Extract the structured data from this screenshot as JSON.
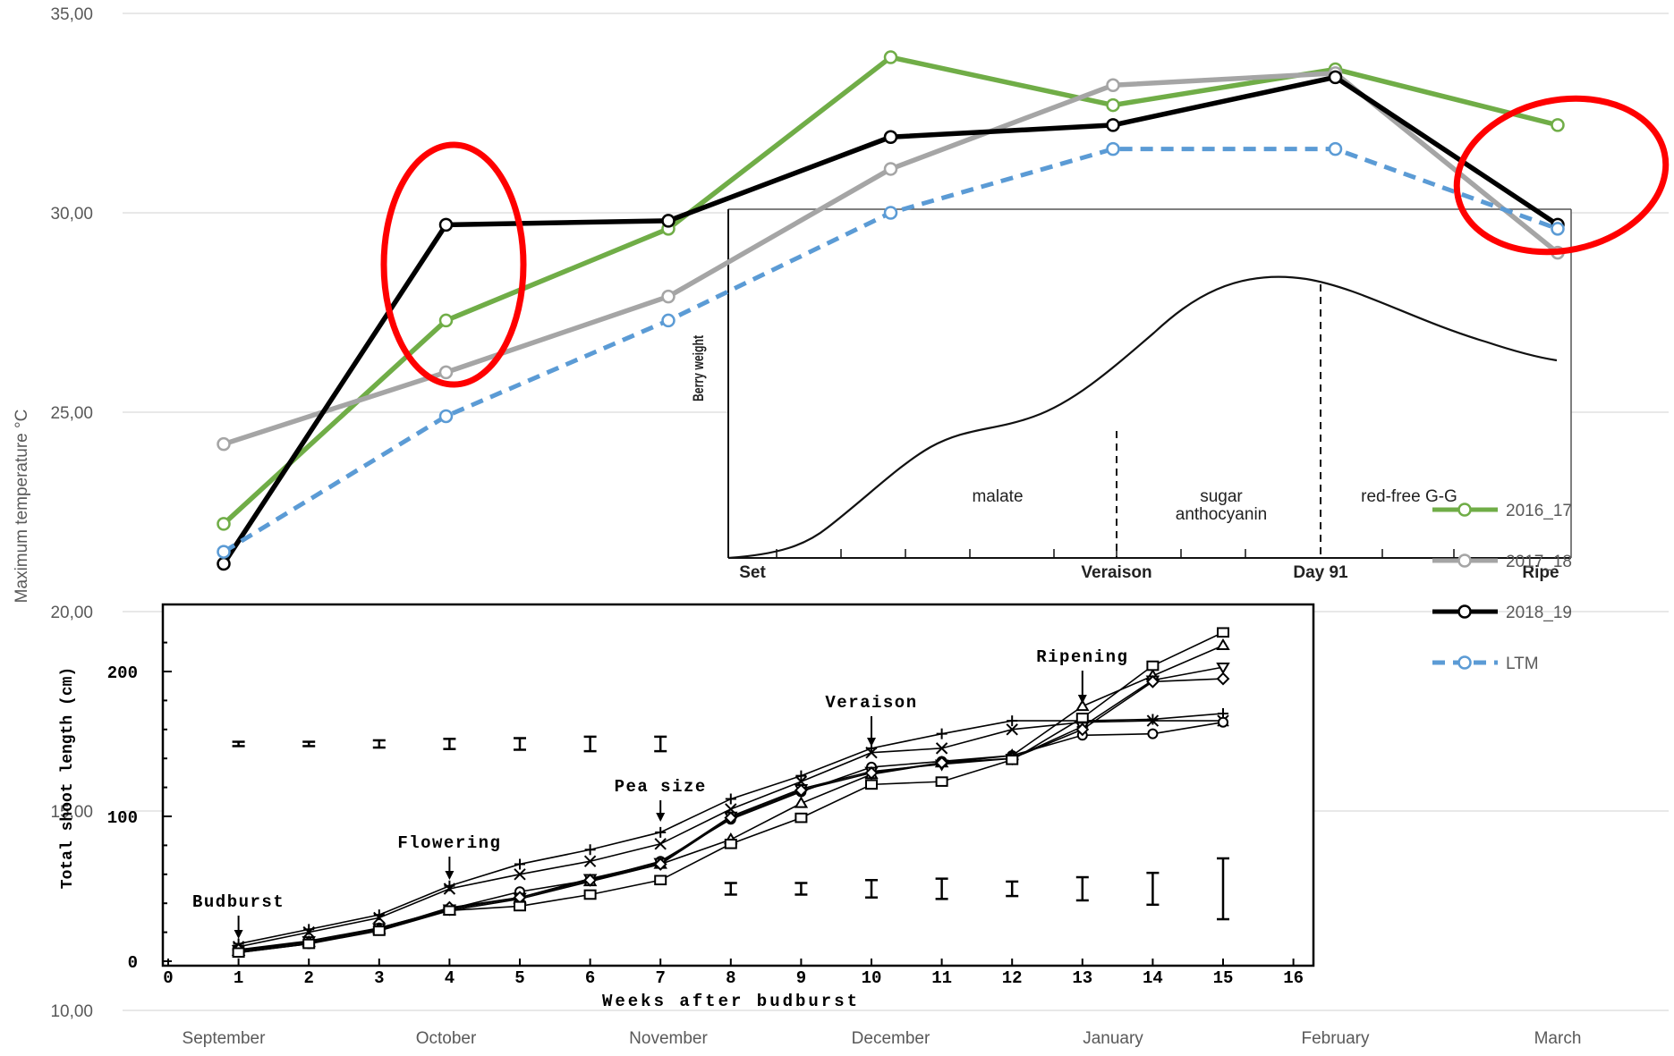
{
  "chart_data": [
    {
      "type": "line",
      "ylabel": "Maximum temperature °C",
      "ylim": [
        10,
        35
      ],
      "yticks": [
        "10,00",
        "15,00",
        "20,00",
        "25,00",
        "30,00",
        "35,00"
      ],
      "categories": [
        "September",
        "October",
        "November",
        "December",
        "January",
        "February",
        "March"
      ],
      "grid": true,
      "legend_position": "right",
      "series": [
        {
          "name": "2016_17",
          "color": "#70AD47",
          "values": [
            22.2,
            27.3,
            29.6,
            33.9,
            32.7,
            33.6,
            32.2
          ]
        },
        {
          "name": "2017_18",
          "color": "#A5A5A5",
          "values": [
            24.2,
            26.0,
            27.9,
            31.1,
            33.2,
            33.5,
            29.0
          ]
        },
        {
          "name": "2018_19",
          "color": "#000000",
          "values": [
            21.2,
            29.7,
            29.8,
            31.9,
            32.2,
            33.4,
            29.7
          ]
        },
        {
          "name": "LTM",
          "color": "#5B9BD5",
          "dashed": true,
          "values": [
            21.5,
            24.9,
            27.3,
            30.0,
            31.6,
            31.6,
            29.6
          ]
        }
      ]
    },
    {
      "type": "line",
      "title": "",
      "xlabel": "Weeks after budburst",
      "ylabel": "Total shoot length (cm)",
      "xticks": [
        "0",
        "1",
        "2",
        "3",
        "4",
        "5",
        "6",
        "7",
        "8",
        "9",
        "10",
        "11",
        "12",
        "13",
        "14",
        "15",
        "16"
      ],
      "yticks": [
        "0",
        "100",
        "200"
      ],
      "xlim": [
        0,
        16
      ],
      "ylim": [
        0,
        230
      ],
      "annotations": [
        "Budburst",
        "Flowering",
        "Pea size",
        "Veraison",
        "Ripening"
      ],
      "series": [
        {
          "marker": "+",
          "x": [
            1,
            2,
            3,
            4,
            5,
            6,
            7,
            8,
            9,
            10,
            11,
            12,
            13,
            14,
            15
          ],
          "values": [
            12,
            22,
            32,
            52,
            67,
            77,
            89,
            112,
            128,
            147,
            157,
            166,
            166,
            167,
            171
          ]
        },
        {
          "marker": "x",
          "x": [
            1,
            2,
            3,
            4,
            5,
            6,
            7,
            8,
            9,
            10,
            11,
            12,
            13,
            14,
            15
          ],
          "values": [
            10,
            20,
            30,
            50,
            60,
            69,
            81,
            105,
            124,
            144,
            147,
            160,
            165,
            166,
            166
          ]
        },
        {
          "marker": "o",
          "x": [
            1,
            2,
            3,
            4,
            5,
            6,
            7,
            8,
            9,
            10,
            11,
            12,
            13,
            14,
            15
          ],
          "values": [
            6,
            12,
            23,
            36,
            48,
            56,
            69,
            98,
            117,
            134,
            138,
            142,
            156,
            157,
            165
          ]
        },
        {
          "marker": "triangle-up",
          "x": [
            1,
            2,
            3,
            4,
            5,
            6,
            7,
            8,
            9,
            10,
            11,
            12,
            13,
            14,
            15
          ],
          "values": [
            7,
            13,
            22,
            35,
            43,
            55,
            67,
            84,
            109,
            129,
            137,
            142,
            176,
            197,
            218
          ]
        },
        {
          "marker": "triangle-down",
          "x": [
            1,
            2,
            3,
            4,
            5,
            6,
            7,
            8,
            9,
            10,
            11,
            12,
            13,
            14,
            15
          ],
          "values": [
            8,
            14,
            23,
            36,
            44,
            57,
            68,
            100,
            119,
            131,
            136,
            140,
            162,
            194,
            203
          ]
        },
        {
          "marker": "diamond",
          "x": [
            1,
            2,
            3,
            4,
            5,
            6,
            7,
            8,
            9,
            10,
            11,
            12,
            13,
            14,
            15
          ],
          "values": [
            8,
            13,
            22,
            37,
            44,
            56,
            67,
            99,
            118,
            130,
            137,
            140,
            160,
            193,
            195
          ]
        },
        {
          "marker": "square",
          "x": [
            1,
            2,
            3,
            4,
            5,
            6,
            7,
            8,
            9,
            10,
            11,
            12,
            13,
            14,
            15
          ],
          "values": [
            6,
            12,
            21,
            35,
            38,
            46,
            56,
            81,
            99,
            122,
            124,
            139,
            168,
            204,
            227
          ]
        }
      ],
      "error_bars_upper": {
        "x": [
          1,
          2,
          3,
          4,
          5,
          6,
          7
        ],
        "y": 150,
        "half": [
          1.5,
          1.5,
          2.5,
          3.5,
          4,
          5,
          5
        ]
      },
      "error_bars_lower": {
        "x": [
          8,
          9,
          10,
          11,
          12,
          13,
          14,
          15
        ],
        "y": 50,
        "half": [
          4,
          4,
          6,
          7,
          5,
          8,
          11,
          21
        ]
      }
    },
    {
      "type": "line",
      "ylabel": "Berry weight",
      "stage_labels": [
        "malate",
        "sugar anthocyanin",
        "red-free G-G"
      ],
      "xticks": [
        "Set",
        "Veraison",
        "Day 91",
        "Ripe"
      ]
    }
  ],
  "chart3_stage_labels": [
    "malate",
    "sugar",
    "anthocyanin",
    "red-free G-G"
  ],
  "colors": {
    "green": "#70AD47",
    "grey": "#A5A5A5",
    "black": "#000000",
    "blue": "#5B9BD5",
    "highlight_red": "#FF0000"
  }
}
